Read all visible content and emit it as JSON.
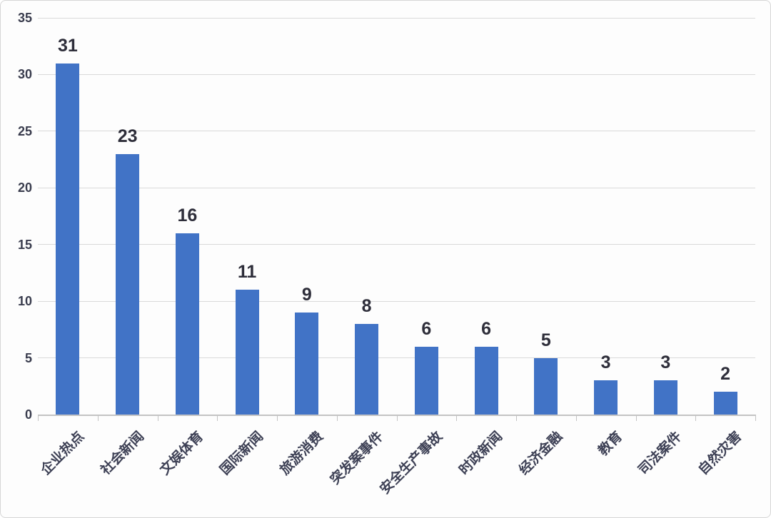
{
  "chart_data": {
    "type": "bar",
    "title": "",
    "xlabel": "",
    "ylabel": "",
    "categories": [
      "企业热点",
      "社会新闻",
      "文娱体育",
      "国际新闻",
      "旅游消费",
      "突发案事件",
      "安全生产事故",
      "时政新闻",
      "经济金融",
      "教育",
      "司法案件",
      "自然灾害"
    ],
    "values": [
      31,
      23,
      16,
      11,
      9,
      8,
      6,
      6,
      5,
      3,
      3,
      2
    ],
    "ylim": [
      0,
      35
    ],
    "yticks": [
      0,
      5,
      10,
      15,
      20,
      25,
      30,
      35
    ],
    "grid": true,
    "legend": false,
    "colors": {
      "bar": "#4173c6",
      "value_label": "#2e2e3a",
      "axis_tick_label": "#3a3d4e",
      "category_label": "#3d4055",
      "gridline": "#d9d9d9",
      "axis_line": "#c3c3c3",
      "background": "#fdfdfd"
    }
  }
}
